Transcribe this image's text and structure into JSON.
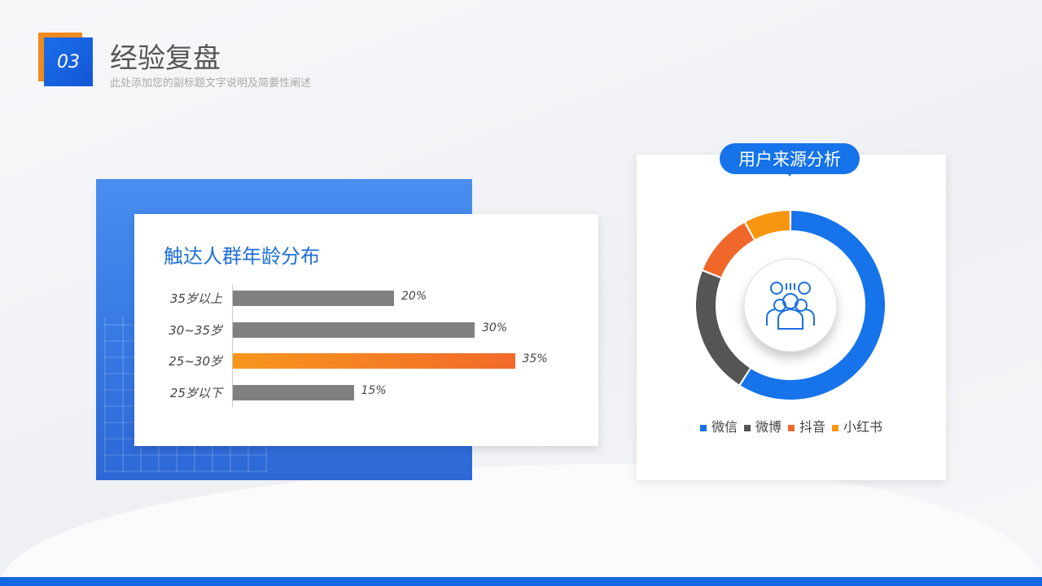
{
  "header": {
    "number": "03",
    "title": "经验复盘",
    "subtitle": "此处添加您的副标题文字说明及简要性阐述"
  },
  "chart_data": [
    {
      "type": "bar",
      "orientation": "horizontal",
      "title": "触达人群年龄分布",
      "categories": [
        "35岁以上",
        "30~35岁",
        "25~30岁",
        "25岁以下"
      ],
      "values": [
        20,
        30,
        35,
        15
      ],
      "labels": [
        "20%",
        "30%",
        "35%",
        "15%"
      ],
      "highlight": "25~30岁",
      "colors": {
        "default": "#808080",
        "highlight": "#f5892a"
      },
      "xlim": [
        0,
        100
      ]
    },
    {
      "type": "pie",
      "variant": "donut",
      "title": "用户来源分析",
      "categories": [
        "微信",
        "微博",
        "抖音",
        "小红书"
      ],
      "values": [
        59,
        22,
        11,
        8
      ],
      "colors": [
        "#1673ea",
        "#555555",
        "#f0672a",
        "#f7970f"
      ],
      "center_icon": "team-people-icon",
      "legend": "bottom"
    }
  ]
}
